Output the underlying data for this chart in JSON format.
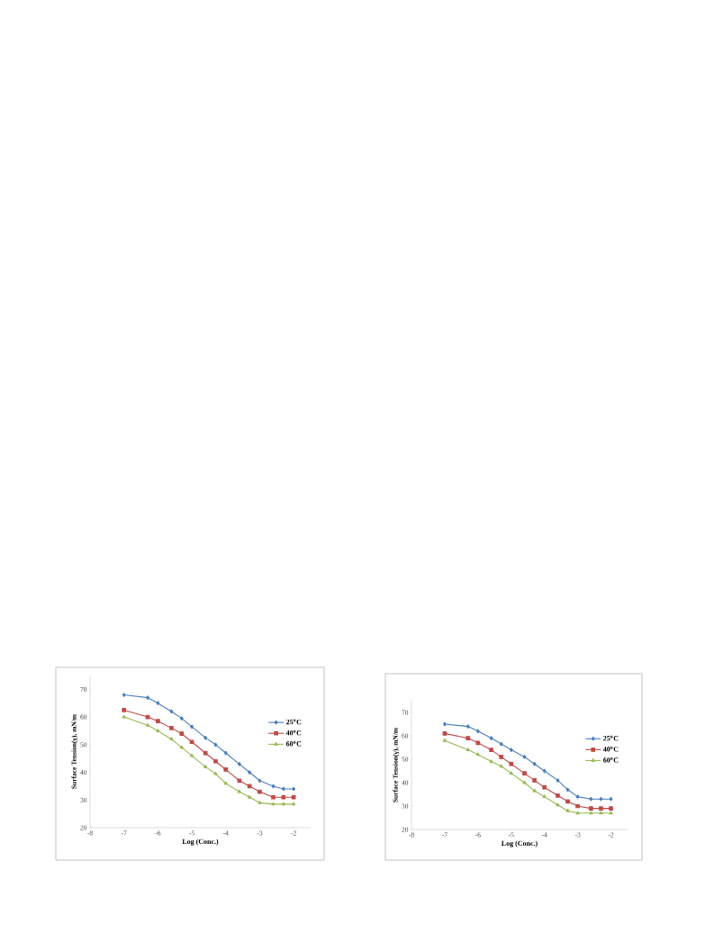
{
  "chart_data": [
    {
      "type": "line",
      "xlabel": "Log (Conc.)",
      "ylabel": "Surface Tension(γ), mN/m",
      "x": [
        -7,
        -6.3,
        -6,
        -5.6,
        -5.3,
        -5,
        -4.6,
        -4.3,
        -4,
        -3.6,
        -3.3,
        -3,
        -2.6,
        -2.3,
        -2
      ],
      "series": [
        {
          "name": "25$^{o}$C",
          "color": "#4a7ebb",
          "marker": "diamond",
          "values": [
            68,
            67,
            65,
            62,
            59.5,
            56.5,
            52.5,
            50,
            47,
            43,
            40,
            37,
            35,
            34,
            34
          ]
        },
        {
          "name": "40$^{o}$C",
          "color": "#be4b48",
          "marker": "square",
          "values": [
            62.5,
            60,
            58.5,
            56,
            54,
            51,
            47,
            44,
            41,
            37,
            35,
            33,
            31,
            31,
            31
          ]
        },
        {
          "name": "60$^{o}$C",
          "color": "#98b954",
          "marker": "triangle",
          "values": [
            60,
            57,
            55,
            52,
            49,
            46,
            42,
            39.5,
            36,
            33,
            31,
            29,
            28.5,
            28.5,
            28.5
          ]
        }
      ],
      "xlim": [
        -8,
        -1.5
      ],
      "ylim": [
        20,
        75
      ],
      "xticks": [
        -8,
        -7,
        -6,
        -5,
        -4,
        -3,
        -2
      ],
      "yticks": [
        20,
        30,
        40,
        50,
        60,
        70
      ],
      "legend": "right",
      "grid": false
    },
    {
      "type": "line",
      "xlabel": "Log (Conc.)",
      "ylabel": "Surface Tension(γ), mN/m",
      "x": [
        -7,
        -6.3,
        -6,
        -5.6,
        -5.3,
        -5,
        -4.6,
        -4.3,
        -4,
        -3.6,
        -3.3,
        -3,
        -2.6,
        -2.3,
        -2
      ],
      "series": [
        {
          "name": "25$^{o}$C",
          "color": "#4a7ebb",
          "marker": "diamond",
          "values": [
            65,
            64,
            62,
            59,
            56.5,
            54,
            51,
            48,
            45,
            41,
            37,
            34,
            33,
            33,
            33
          ]
        },
        {
          "name": "40$^{o}$C",
          "color": "#be4b48",
          "marker": "square",
          "values": [
            61,
            59,
            57,
            54,
            51,
            48,
            44,
            41,
            38,
            34.5,
            32,
            30,
            29,
            29,
            29
          ]
        },
        {
          "name": "60$^{o}$C",
          "color": "#98b954",
          "marker": "triangle",
          "values": [
            58,
            54,
            52,
            49,
            47,
            44,
            40,
            36.5,
            34,
            30.5,
            28,
            27,
            27,
            27,
            27
          ]
        }
      ],
      "xlim": [
        -8,
        -1.5
      ],
      "ylim": [
        20,
        75
      ],
      "xticks": [
        -8,
        -7,
        -6,
        -5,
        -4,
        -3,
        -2
      ],
      "yticks": [
        20,
        30,
        40,
        50,
        60,
        70
      ],
      "legend": "right",
      "grid": false
    }
  ]
}
